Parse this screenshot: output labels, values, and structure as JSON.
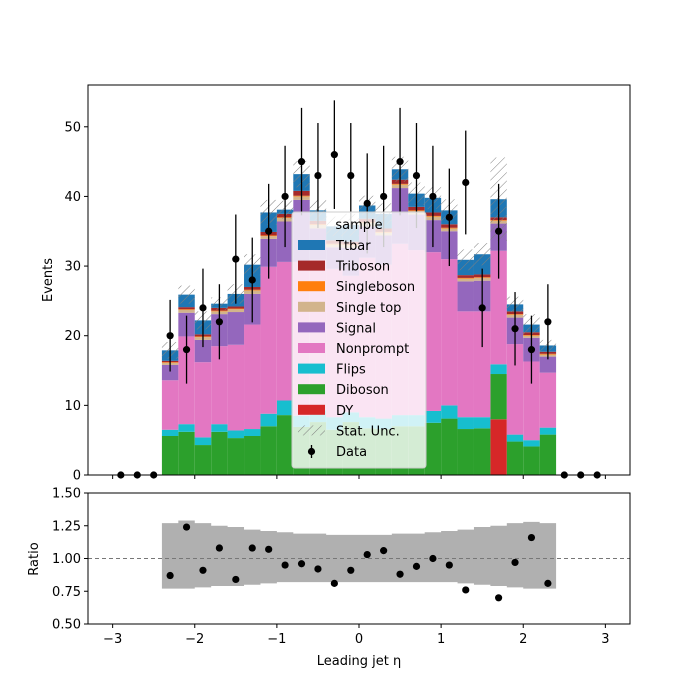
{
  "chart_data": [
    {
      "type": "bar",
      "stacked": true,
      "xlabel": "Leading jet  η",
      "ylabel": "Events",
      "xlim": [
        -3.3,
        3.3
      ],
      "ylim": [
        0,
        56
      ],
      "yticks": [
        0,
        10,
        20,
        30,
        40,
        50
      ],
      "xticks": [
        -3,
        -2,
        -1,
        0,
        1,
        2,
        3
      ],
      "bin_edges": [
        -2.4,
        -2.2,
        -2.0,
        -1.8,
        -1.6,
        -1.4,
        -1.2,
        -1.0,
        -0.8,
        -0.6,
        -0.4,
        -0.2,
        0.0,
        0.2,
        0.4,
        0.6,
        0.8,
        1.0,
        1.2,
        1.4,
        1.6,
        1.8,
        2.0,
        2.2,
        2.4
      ],
      "legend_title": "sample",
      "legend_position": "center",
      "series": [
        {
          "name": "DY",
          "color": "#d62728",
          "values": [
            0,
            0,
            0,
            0,
            0,
            0,
            0,
            0,
            0,
            0,
            0,
            0,
            0,
            0,
            0,
            0,
            0,
            0,
            0,
            0,
            8.0,
            0,
            0,
            0
          ]
        },
        {
          "name": "Diboson",
          "color": "#2ca02c",
          "values": [
            5.6,
            6.2,
            4.3,
            6.2,
            5.3,
            5.6,
            7.0,
            8.6,
            6.9,
            7.6,
            6.5,
            7.6,
            6.7,
            6.6,
            7.0,
            7.0,
            7.5,
            8.1,
            6.6,
            6.7,
            6.5,
            4.8,
            4.1,
            5.8
          ]
        },
        {
          "name": "Flips",
          "color": "#17becf",
          "values": [
            0.9,
            1.1,
            1.1,
            1.1,
            1.1,
            1.0,
            1.8,
            2.1,
            1.6,
            1.7,
            1.8,
            1.4,
            1.6,
            1.5,
            1.6,
            1.6,
            1.7,
            1.9,
            1.7,
            1.6,
            1.4,
            1.0,
            0.9,
            1.0
          ]
        },
        {
          "name": "Nonprompt",
          "color": "#e377c2",
          "values": [
            7.1,
            12.6,
            10.8,
            11.2,
            12.3,
            15.0,
            21.1,
            19.9,
            22.1,
            21.6,
            21.3,
            19.6,
            22.9,
            22.1,
            24.6,
            23.7,
            22.8,
            21.0,
            15.2,
            15.2,
            16.3,
            13.0,
            11.3,
            7.9
          ]
        },
        {
          "name": "Signal",
          "color": "#9467bd",
          "values": [
            2.2,
            3.4,
            3.2,
            4.6,
            4.7,
            4.4,
            4.0,
            5.8,
            8.9,
            4.5,
            3.1,
            4.0,
            4.5,
            4.2,
            8.0,
            5.1,
            4.6,
            4.0,
            4.3,
            4.4,
            3.9,
            3.8,
            3.4,
            2.3
          ]
        },
        {
          "name": "Single top",
          "color": "#d2b48c",
          "values": [
            0.3,
            0.4,
            0.4,
            0.4,
            0.4,
            0.5,
            0.4,
            0.5,
            0.5,
            0.5,
            0.4,
            0.4,
            0.5,
            0.4,
            0.5,
            0.5,
            0.5,
            0.4,
            0.4,
            0.4,
            0.4,
            0.4,
            0.3,
            0.3
          ]
        },
        {
          "name": "Singleboson",
          "color": "#ff7f0e",
          "values": [
            0.1,
            0.1,
            0.1,
            0.1,
            0.1,
            0.1,
            0.1,
            0.1,
            0.1,
            0.1,
            0.1,
            0.1,
            0.1,
            0.1,
            0.1,
            0.1,
            0.1,
            0.1,
            0.1,
            0.1,
            0.1,
            0.1,
            0.1,
            0.1
          ]
        },
        {
          "name": "Triboson",
          "color": "#a52a2a",
          "values": [
            0.2,
            0.3,
            0.3,
            0.4,
            0.3,
            0.4,
            0.5,
            0.5,
            0.7,
            0.5,
            0.5,
            0.4,
            0.5,
            0.5,
            0.6,
            0.5,
            0.5,
            0.5,
            0.4,
            0.4,
            0.4,
            0.4,
            0.4,
            0.3
          ]
        },
        {
          "name": "Ttbar",
          "color": "#1f77b4",
          "values": [
            1.5,
            1.8,
            2.0,
            0.6,
            1.8,
            3.2,
            2.8,
            0.6,
            2.4,
            1.5,
            2.0,
            2.4,
            1.9,
            2.1,
            1.5,
            1.9,
            2.1,
            2.0,
            2.2,
            2.9,
            2.6,
            1.0,
            1.1,
            0.9
          ]
        }
      ],
      "stat_unc": [
        1.2,
        1.3,
        1.3,
        0.9,
        1.4,
        1.5,
        1.8,
        1.3,
        1.9,
        1.5,
        1.4,
        1.6,
        1.4,
        1.5,
        1.8,
        1.6,
        1.6,
        1.6,
        1.5,
        1.6,
        6.0,
        1.1,
        1.5,
        0.8
      ],
      "stat_unc_label": "Stat. Unc.",
      "data": {
        "name": "Data",
        "x": [
          -2.9,
          -2.7,
          -2.5,
          -2.3,
          -2.1,
          -1.9,
          -1.7,
          -1.5,
          -1.3,
          -1.1,
          -0.9,
          -0.7,
          -0.5,
          -0.3,
          -0.1,
          0.1,
          0.3,
          0.5,
          0.7,
          0.9,
          1.1,
          1.3,
          1.5,
          1.7,
          1.9,
          2.1,
          2.3,
          2.5,
          2.7,
          2.9
        ],
        "y": [
          0,
          0,
          0,
          20,
          18,
          24,
          22,
          31,
          28,
          35,
          40,
          45,
          43,
          46,
          43,
          39,
          40,
          45,
          43,
          40,
          37,
          42,
          24,
          35,
          21,
          18,
          22,
          0,
          0,
          0
        ]
      }
    },
    {
      "type": "scatter",
      "xlabel": "Leading jet  η",
      "ylabel": "Ratio",
      "ylim": [
        0.5,
        1.5
      ],
      "yticks": [
        0.5,
        0.75,
        1.0,
        1.25,
        1.5
      ],
      "ytick_labels": [
        "0.50",
        "0.75",
        "1.00",
        "1.25",
        "1.50"
      ],
      "xticks": [
        -3,
        -2,
        -1,
        0,
        1,
        2,
        3
      ],
      "reference_line": 1.0,
      "x": [
        -2.3,
        -2.1,
        -1.9,
        -1.7,
        -1.5,
        -1.3,
        -1.1,
        -0.9,
        -0.7,
        -0.5,
        -0.3,
        -0.1,
        0.1,
        0.3,
        0.5,
        0.7,
        0.9,
        1.1,
        1.3,
        1.5,
        1.7,
        1.9,
        2.1,
        2.3
      ],
      "y": [
        0.87,
        1.24,
        0.91,
        1.08,
        0.84,
        1.08,
        1.07,
        0.95,
        0.96,
        0.92,
        0.81,
        0.91,
        1.03,
        1.06,
        0.88,
        0.94,
        1.0,
        0.95,
        0.76,
        null,
        0.7,
        0.97,
        1.16,
        0.81
      ],
      "band_lo": [
        0.77,
        0.77,
        0.78,
        0.79,
        0.79,
        0.8,
        0.81,
        0.82,
        0.82,
        0.82,
        0.82,
        0.82,
        0.82,
        0.82,
        0.82,
        0.82,
        0.82,
        0.82,
        0.81,
        0.8,
        0.79,
        0.78,
        0.77,
        0.77
      ],
      "band_hi": [
        1.27,
        1.29,
        1.27,
        1.25,
        1.24,
        1.22,
        1.21,
        1.2,
        1.19,
        1.19,
        1.18,
        1.18,
        1.18,
        1.18,
        1.19,
        1.19,
        1.2,
        1.21,
        1.22,
        1.24,
        1.25,
        1.27,
        1.28,
        1.27
      ]
    }
  ]
}
